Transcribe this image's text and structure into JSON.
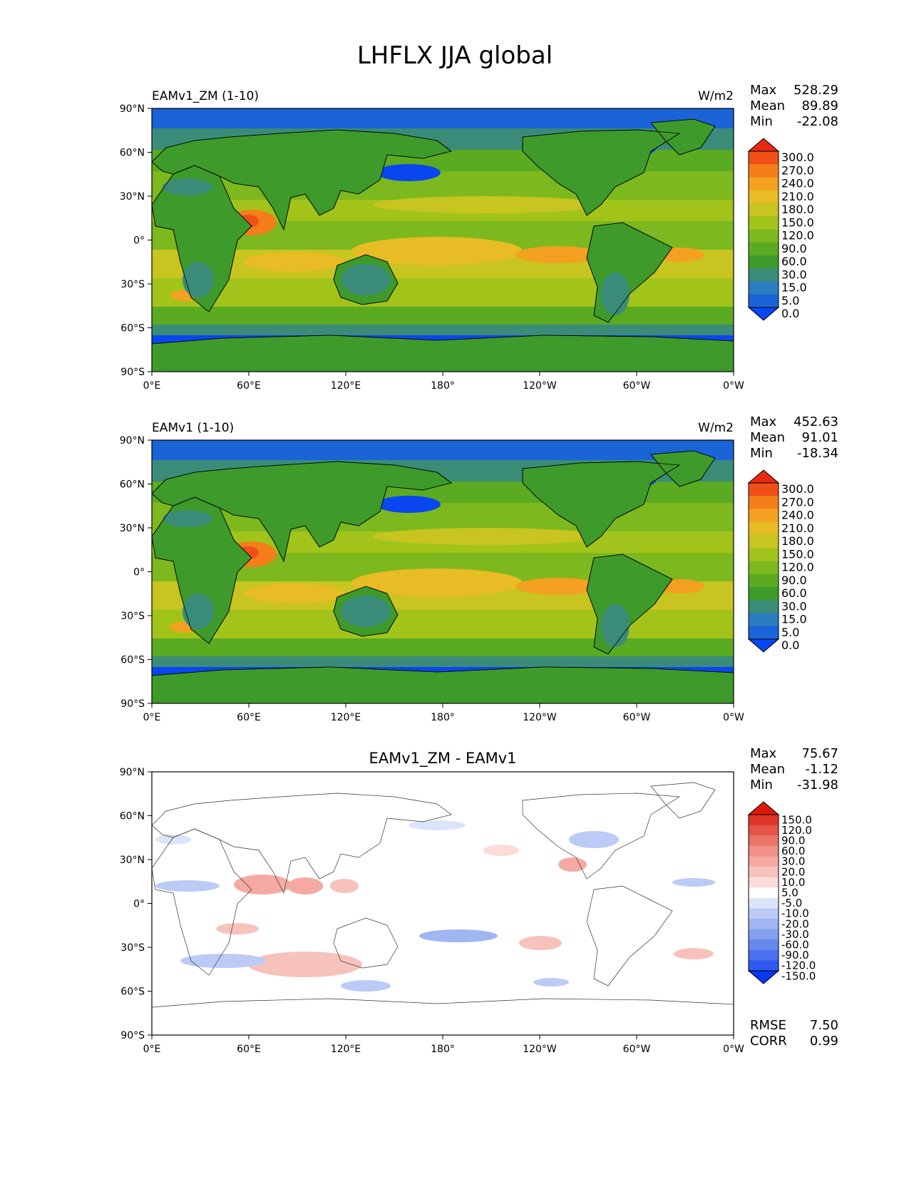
{
  "figure_title": "LHFLX JJA global",
  "panels": [
    {
      "id": "test",
      "title_left": "EAMv1_ZM (1-10)",
      "title_center": "",
      "units": "W/m2",
      "stats": {
        "max_label": "Max",
        "max": "528.29",
        "mean_label": "Mean",
        "mean": "89.89",
        "min_label": "Min",
        "min": "-22.08"
      },
      "colorbar": {
        "levels": [
          "0.0",
          "5.0",
          "15.0",
          "30.0",
          "60.0",
          "90.0",
          "120.0",
          "150.0",
          "180.0",
          "210.0",
          "240.0",
          "270.0",
          "300.0"
        ],
        "colors": [
          "#0a46f0",
          "#1a64d8",
          "#2a7cc0",
          "#3a8c78",
          "#3e9a2a",
          "#5aaa22",
          "#7cb81e",
          "#a2c41a",
          "#c8c420",
          "#e8bc24",
          "#f4a020",
          "#f47e1a",
          "#f05018",
          "#e82a10"
        ]
      },
      "lat_ticks": [
        "90°N",
        "60°N",
        "30°N",
        "0°",
        "30°S",
        "60°S",
        "90°S"
      ],
      "lon_ticks": [
        "0°E",
        "60°E",
        "120°E",
        "180°",
        "120°W",
        "60°W",
        "0°W"
      ]
    },
    {
      "id": "reference",
      "title_left": "EAMv1 (1-10)",
      "title_center": "",
      "units": "W/m2",
      "stats": {
        "max_label": "Max",
        "max": "452.63",
        "mean_label": "Mean",
        "mean": "91.01",
        "min_label": "Min",
        "min": "-18.34"
      },
      "colorbar": {
        "levels": [
          "0.0",
          "5.0",
          "15.0",
          "30.0",
          "60.0",
          "90.0",
          "120.0",
          "150.0",
          "180.0",
          "210.0",
          "240.0",
          "270.0",
          "300.0"
        ],
        "colors": [
          "#0a46f0",
          "#1a64d8",
          "#2a7cc0",
          "#3a8c78",
          "#3e9a2a",
          "#5aaa22",
          "#7cb81e",
          "#a2c41a",
          "#c8c420",
          "#e8bc24",
          "#f4a020",
          "#f47e1a",
          "#f05018",
          "#e82a10"
        ]
      },
      "lat_ticks": [
        "90°N",
        "60°N",
        "30°N",
        "0°",
        "30°S",
        "60°S",
        "90°S"
      ],
      "lon_ticks": [
        "0°E",
        "60°E",
        "120°E",
        "180°",
        "120°W",
        "60°W",
        "0°W"
      ]
    },
    {
      "id": "difference",
      "title_left": "",
      "title_center": "EAMv1_ZM - EAMv1",
      "units": "",
      "stats": {
        "max_label": "Max",
        "max": "75.67",
        "mean_label": "Mean",
        "mean": "-1.12",
        "min_label": "Min",
        "min": "-31.98"
      },
      "colorbar": {
        "levels": [
          "-150.0",
          "-120.0",
          "-90.0",
          "-60.0",
          "-30.0",
          "-20.0",
          "-10.0",
          "-5.0",
          "5.0",
          "10.0",
          "20.0",
          "30.0",
          "60.0",
          "90.0",
          "120.0",
          "150.0"
        ],
        "colors": [
          "#0a38f0",
          "#2e58f0",
          "#4a70ee",
          "#6888ee",
          "#84a0ee",
          "#a0b6f2",
          "#bccaf6",
          "#dce4fa",
          "#ffffff",
          "#fcdcd8",
          "#f8c2bc",
          "#f4aaa2",
          "#f09088",
          "#ea746a",
          "#e45448",
          "#e0342a",
          "#e01808"
        ]
      },
      "lat_ticks": [
        "90°N",
        "60°N",
        "30°N",
        "0°",
        "30°S",
        "60°S",
        "90°S"
      ],
      "lon_ticks": [
        "0°E",
        "60°E",
        "120°E",
        "180°",
        "120°W",
        "60°W",
        "0°W"
      ],
      "metrics": {
        "rmse_label": "RMSE",
        "rmse": "7.50",
        "corr_label": "CORR",
        "corr": "0.99"
      }
    }
  ]
}
